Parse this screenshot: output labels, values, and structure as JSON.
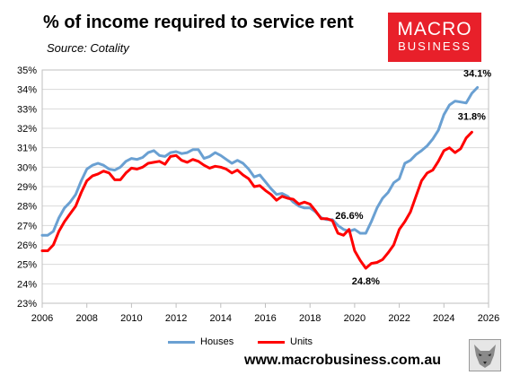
{
  "header": {
    "title": "% of income required to service rent",
    "source": "Source: Cotality"
  },
  "logo": {
    "line1": "MACRO",
    "line2": "BUSINESS"
  },
  "footer": {
    "url": "www.macrobusiness.com.au"
  },
  "colors": {
    "houses": "#6aa0d2",
    "units": "#ff0000",
    "logo_bg": "#e8202a"
  },
  "icons": {
    "logo": "macrobusiness-logo",
    "wolf": "wolf-logo-icon"
  },
  "chart_data": {
    "type": "line",
    "title": "% of income required to service rent",
    "xlim": [
      2006,
      2026
    ],
    "ylim": [
      23,
      35
    ],
    "x_ticks": [
      "2006",
      "2008",
      "2010",
      "2012",
      "2014",
      "2016",
      "2018",
      "2020",
      "2022",
      "2024",
      "2026"
    ],
    "y_ticks": [
      "23%",
      "24%",
      "25%",
      "26%",
      "27%",
      "28%",
      "29%",
      "30%",
      "31%",
      "32%",
      "33%",
      "34%",
      "35%"
    ],
    "grid": true,
    "legend_position": "bottom",
    "series": [
      {
        "name": "Houses",
        "points": [
          [
            2006.0,
            26.5
          ],
          [
            2006.25,
            26.5
          ],
          [
            2006.5,
            26.7
          ],
          [
            2006.75,
            27.4
          ],
          [
            2007.0,
            27.9
          ],
          [
            2007.25,
            28.2
          ],
          [
            2007.5,
            28.6
          ],
          [
            2007.75,
            29.3
          ],
          [
            2008.0,
            29.9
          ],
          [
            2008.25,
            30.1
          ],
          [
            2008.5,
            30.2
          ],
          [
            2008.75,
            30.1
          ],
          [
            2009.0,
            29.9
          ],
          [
            2009.25,
            29.85
          ],
          [
            2009.5,
            30.0
          ],
          [
            2009.75,
            30.3
          ],
          [
            2010.0,
            30.45
          ],
          [
            2010.25,
            30.4
          ],
          [
            2010.5,
            30.5
          ],
          [
            2010.75,
            30.75
          ],
          [
            2011.0,
            30.85
          ],
          [
            2011.25,
            30.6
          ],
          [
            2011.5,
            30.55
          ],
          [
            2011.75,
            30.75
          ],
          [
            2012.0,
            30.8
          ],
          [
            2012.25,
            30.7
          ],
          [
            2012.5,
            30.75
          ],
          [
            2012.75,
            30.9
          ],
          [
            2013.0,
            30.9
          ],
          [
            2013.25,
            30.45
          ],
          [
            2013.5,
            30.55
          ],
          [
            2013.75,
            30.75
          ],
          [
            2014.0,
            30.6
          ],
          [
            2014.25,
            30.4
          ],
          [
            2014.5,
            30.2
          ],
          [
            2014.75,
            30.35
          ],
          [
            2015.0,
            30.2
          ],
          [
            2015.25,
            29.9
          ],
          [
            2015.5,
            29.5
          ],
          [
            2015.75,
            29.6
          ],
          [
            2016.0,
            29.25
          ],
          [
            2016.25,
            28.9
          ],
          [
            2016.5,
            28.6
          ],
          [
            2016.75,
            28.65
          ],
          [
            2017.0,
            28.5
          ],
          [
            2017.25,
            28.2
          ],
          [
            2017.5,
            28.0
          ],
          [
            2017.75,
            27.9
          ],
          [
            2018.0,
            27.9
          ],
          [
            2018.25,
            27.7
          ],
          [
            2018.5,
            27.4
          ],
          [
            2018.75,
            27.3
          ],
          [
            2019.0,
            27.3
          ],
          [
            2019.25,
            27.0
          ],
          [
            2019.5,
            26.8
          ],
          [
            2019.75,
            26.7
          ],
          [
            2020.0,
            26.8
          ],
          [
            2020.25,
            26.6
          ],
          [
            2020.5,
            26.6
          ],
          [
            2020.75,
            27.2
          ],
          [
            2021.0,
            27.9
          ],
          [
            2021.25,
            28.4
          ],
          [
            2021.5,
            28.7
          ],
          [
            2021.75,
            29.2
          ],
          [
            2022.0,
            29.4
          ],
          [
            2022.25,
            30.2
          ],
          [
            2022.5,
            30.35
          ],
          [
            2022.75,
            30.65
          ],
          [
            2023.0,
            30.85
          ],
          [
            2023.25,
            31.1
          ],
          [
            2023.5,
            31.45
          ],
          [
            2023.75,
            31.9
          ],
          [
            2024.0,
            32.7
          ],
          [
            2024.25,
            33.2
          ],
          [
            2024.5,
            33.4
          ],
          [
            2024.75,
            33.35
          ],
          [
            2025.0,
            33.3
          ],
          [
            2025.25,
            33.8
          ],
          [
            2025.5,
            34.1
          ]
        ]
      },
      {
        "name": "Units",
        "points": [
          [
            2006.0,
            25.7
          ],
          [
            2006.25,
            25.7
          ],
          [
            2006.5,
            26.0
          ],
          [
            2006.75,
            26.7
          ],
          [
            2007.0,
            27.2
          ],
          [
            2007.25,
            27.6
          ],
          [
            2007.5,
            28.0
          ],
          [
            2007.75,
            28.7
          ],
          [
            2008.0,
            29.3
          ],
          [
            2008.25,
            29.55
          ],
          [
            2008.5,
            29.65
          ],
          [
            2008.75,
            29.8
          ],
          [
            2009.0,
            29.7
          ],
          [
            2009.25,
            29.35
          ],
          [
            2009.5,
            29.35
          ],
          [
            2009.75,
            29.7
          ],
          [
            2010.0,
            29.95
          ],
          [
            2010.25,
            29.9
          ],
          [
            2010.5,
            30.0
          ],
          [
            2010.75,
            30.2
          ],
          [
            2011.0,
            30.25
          ],
          [
            2011.25,
            30.3
          ],
          [
            2011.5,
            30.15
          ],
          [
            2011.75,
            30.55
          ],
          [
            2012.0,
            30.6
          ],
          [
            2012.25,
            30.35
          ],
          [
            2012.5,
            30.25
          ],
          [
            2012.75,
            30.4
          ],
          [
            2013.0,
            30.3
          ],
          [
            2013.25,
            30.1
          ],
          [
            2013.5,
            29.95
          ],
          [
            2013.75,
            30.05
          ],
          [
            2014.0,
            30.0
          ],
          [
            2014.25,
            29.9
          ],
          [
            2014.5,
            29.7
          ],
          [
            2014.75,
            29.85
          ],
          [
            2015.0,
            29.6
          ],
          [
            2015.25,
            29.4
          ],
          [
            2015.5,
            29.0
          ],
          [
            2015.75,
            29.05
          ],
          [
            2016.0,
            28.8
          ],
          [
            2016.25,
            28.6
          ],
          [
            2016.5,
            28.3
          ],
          [
            2016.75,
            28.5
          ],
          [
            2017.0,
            28.4
          ],
          [
            2017.25,
            28.35
          ],
          [
            2017.5,
            28.1
          ],
          [
            2017.75,
            28.2
          ],
          [
            2018.0,
            28.1
          ],
          [
            2018.25,
            27.75
          ],
          [
            2018.5,
            27.35
          ],
          [
            2018.75,
            27.35
          ],
          [
            2019.0,
            27.25
          ],
          [
            2019.25,
            26.6
          ],
          [
            2019.5,
            26.5
          ],
          [
            2019.75,
            26.8
          ],
          [
            2020.0,
            25.7
          ],
          [
            2020.25,
            25.2
          ],
          [
            2020.5,
            24.8
          ],
          [
            2020.75,
            25.05
          ],
          [
            2021.0,
            25.1
          ],
          [
            2021.25,
            25.25
          ],
          [
            2021.5,
            25.6
          ],
          [
            2021.75,
            26.0
          ],
          [
            2022.0,
            26.8
          ],
          [
            2022.25,
            27.2
          ],
          [
            2022.5,
            27.7
          ],
          [
            2022.75,
            28.5
          ],
          [
            2023.0,
            29.3
          ],
          [
            2023.25,
            29.7
          ],
          [
            2023.5,
            29.85
          ],
          [
            2023.75,
            30.3
          ],
          [
            2024.0,
            30.85
          ],
          [
            2024.25,
            31.0
          ],
          [
            2024.5,
            30.75
          ],
          [
            2024.75,
            30.95
          ],
          [
            2025.0,
            31.5
          ],
          [
            2025.25,
            31.8
          ]
        ]
      }
    ],
    "annotations": [
      {
        "text": "34.1%",
        "x": 2025.5,
        "y": 34.1,
        "series": "Houses"
      },
      {
        "text": "31.8%",
        "x": 2025.25,
        "y": 31.8,
        "series": "Units"
      },
      {
        "text": "26.6%",
        "x": 2020.0,
        "y": 26.6,
        "series": "Houses"
      },
      {
        "text": "24.8%",
        "x": 2020.5,
        "y": 24.8,
        "series": "Units"
      }
    ]
  }
}
